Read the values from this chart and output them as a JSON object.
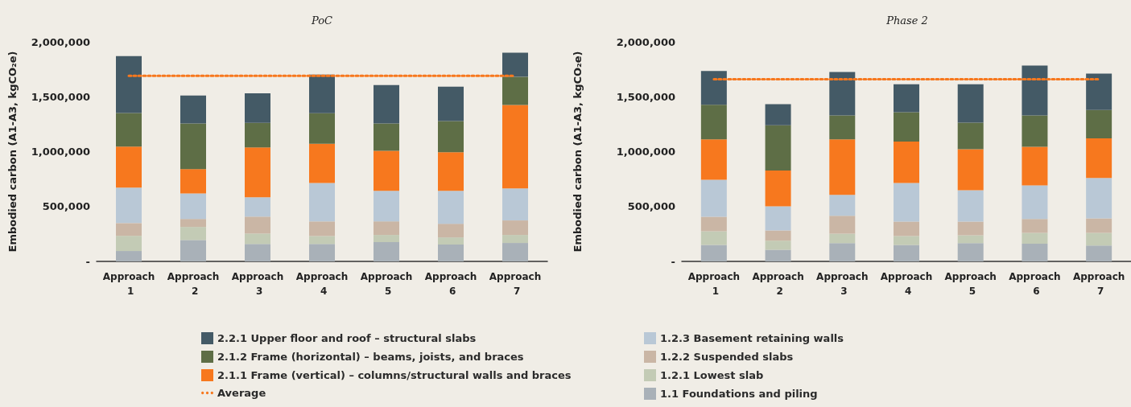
{
  "chart_data": [
    {
      "type": "bar",
      "title": "PoC",
      "ylabel": "Embodied carbon (A1-A3, kgCO₂e)",
      "stacked": true,
      "categories": [
        "Approach 1",
        "Approach 2",
        "Approach 3",
        "Approach 4",
        "Approach 5",
        "Approach 6",
        "Approach 7"
      ],
      "series": [
        {
          "name": "1.1 Foundations and piling",
          "color": "#a9b1b8",
          "values": [
            95000,
            195000,
            159000,
            159000,
            176000,
            154000,
            168000
          ]
        },
        {
          "name": "1.2.1 Lowest slab",
          "color": "#c3cbb5",
          "values": [
            138000,
            119000,
            95000,
            73000,
            65000,
            65000,
            73000
          ]
        },
        {
          "name": "1.2.2 Suspended slabs",
          "color": "#cab6a5",
          "values": [
            116000,
            73000,
            154000,
            132000,
            124000,
            124000,
            132000
          ]
        },
        {
          "name": "1.2.3 Basement retaining walls",
          "color": "#b9c8d6",
          "values": [
            324000,
            232000,
            176000,
            351000,
            278000,
            300000,
            292000
          ]
        },
        {
          "name": "2.1.1 Frame (vertical) – columns/structural walls and braces",
          "color": "#f7781e",
          "values": [
            373000,
            222000,
            454000,
            357000,
            365000,
            351000,
            760000
          ]
        },
        {
          "name": "2.1.2 Frame (horizontal) – beams, joists, and braces",
          "color": "#5e6e46",
          "values": [
            305000,
            416000,
            224000,
            278000,
            249000,
            284000,
            257000
          ]
        },
        {
          "name": "2.2.1 Upper floor and roof – structural slabs",
          "color": "#445a66",
          "values": [
            519000,
            254000,
            270000,
            351000,
            349000,
            314000,
            219000
          ]
        }
      ],
      "ref_lines": [
        {
          "axis": "y",
          "value": 1690000,
          "label": "Average",
          "color": "#f7781e",
          "line_style": "dotted"
        }
      ],
      "ylim": [
        0,
        2000000
      ],
      "yticks": [
        {
          "value": 0,
          "label": "-"
        },
        {
          "value": 500000,
          "label": "500,000"
        },
        {
          "value": 1000000,
          "label": "1,000,000"
        },
        {
          "value": 1500000,
          "label": "1,500,000"
        },
        {
          "value": 2000000,
          "label": "2,000,000"
        }
      ],
      "grid": false,
      "legend": "bottom"
    },
    {
      "type": "bar",
      "title": "Phase 2",
      "ylabel": "Embodied carbon (A1-A3, kgCO₂e)",
      "stacked": true,
      "categories": [
        "Approach 1",
        "Approach 2",
        "Approach 3",
        "Approach 4",
        "Approach 5",
        "Approach 6",
        "Approach 7"
      ],
      "series": [
        {
          "color": "#a9b1b8",
          "values": [
            150000,
            107000,
            166000,
            150000,
            166000,
            161000,
            145000
          ]
        },
        {
          "color": "#c3cbb5",
          "values": [
            124000,
            81000,
            86000,
            81000,
            72000,
            99000,
            115000
          ]
        },
        {
          "color": "#cab6a5",
          "values": [
            132000,
            94000,
            164000,
            132000,
            124000,
            126000,
            132000
          ]
        },
        {
          "color": "#b9c8d6",
          "values": [
            338000,
            220000,
            191000,
            352000,
            287000,
            306000,
            368000
          ]
        },
        {
          "color": "#f7781e",
          "values": [
            368000,
            325000,
            505000,
            376000,
            373000,
            352000,
            360000
          ]
        },
        {
          "color": "#5e6e46",
          "values": [
            314000,
            413000,
            217000,
            268000,
            242000,
            285000,
            260000
          ]
        },
        {
          "color": "#445a66",
          "values": [
            309000,
            193000,
            397000,
            255000,
            349000,
            454000,
            330000
          ]
        }
      ],
      "ref_lines": [
        {
          "axis": "y",
          "value": 1660000,
          "color": "#f7781e",
          "line_style": "dotted"
        }
      ],
      "ylim": [
        0,
        2000000
      ],
      "yticks": [
        {
          "value": 0,
          "label": "-"
        },
        {
          "value": 500000,
          "label": "500,000"
        },
        {
          "value": 1000000,
          "label": "1,000,000"
        },
        {
          "value": 1500000,
          "label": "1,500,000"
        },
        {
          "value": 2000000,
          "label": "2,000,000"
        }
      ],
      "grid": false
    }
  ]
}
